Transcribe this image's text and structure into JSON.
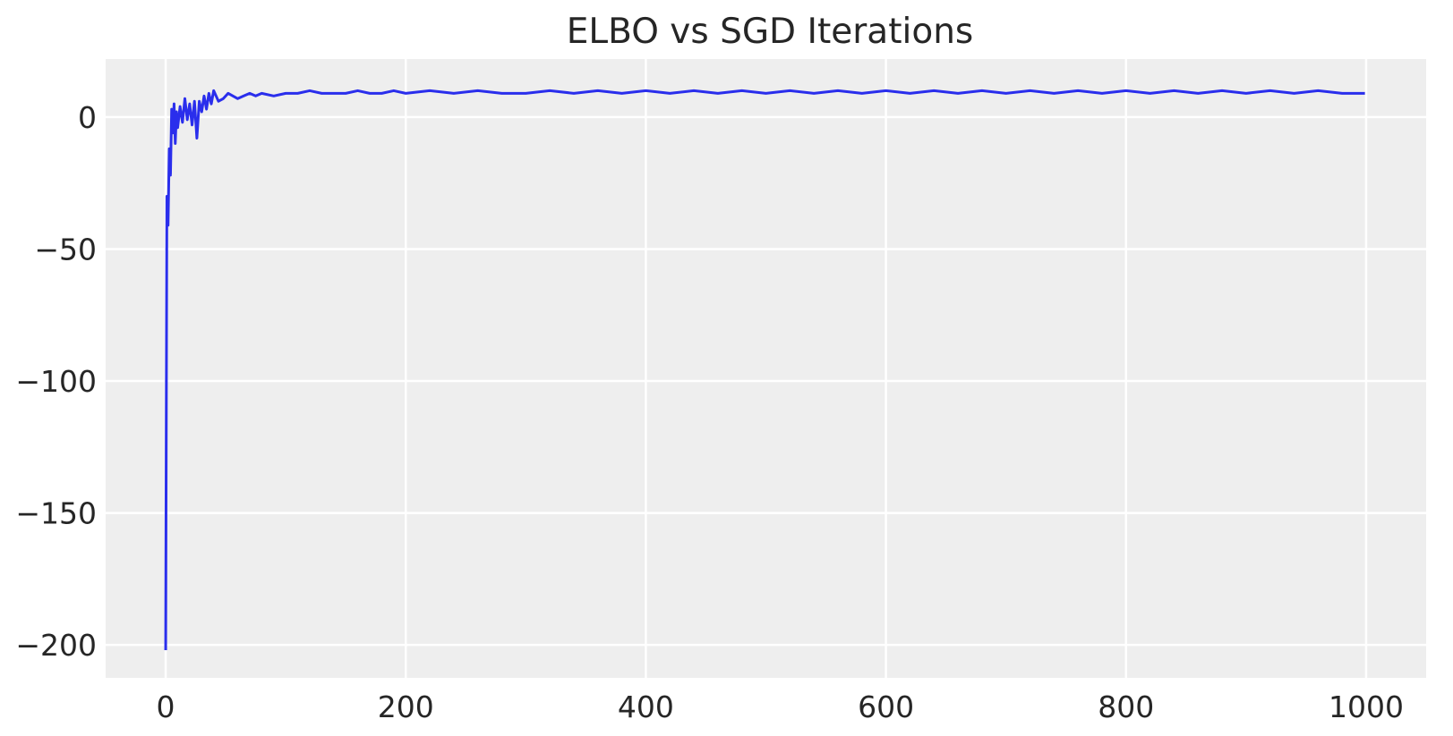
{
  "chart_data": {
    "type": "line",
    "title": "ELBO vs SGD Iterations",
    "xlabel": "",
    "ylabel": "",
    "xlim": [
      -50,
      1050
    ],
    "ylim": [
      -212.5,
      22
    ],
    "x_ticks": [
      0,
      200,
      400,
      600,
      800,
      1000
    ],
    "x_tick_labels": [
      "0",
      "200",
      "400",
      "600",
      "800",
      "1000"
    ],
    "y_ticks": [
      0,
      -50,
      -100,
      -150,
      -200
    ],
    "y_tick_labels": [
      "0",
      "−50",
      "−100",
      "−150",
      "−200"
    ],
    "grid": true,
    "legend": "none",
    "background_color": "#eeeeee",
    "grid_color": "#ffffff",
    "series": [
      {
        "color": "#2a2eec",
        "x": [
          0,
          1,
          2,
          3,
          4,
          5,
          6,
          7,
          8,
          9,
          10,
          12,
          14,
          16,
          18,
          20,
          22,
          24,
          26,
          28,
          30,
          32,
          34,
          36,
          38,
          40,
          44,
          48,
          52,
          56,
          60,
          65,
          70,
          75,
          80,
          90,
          100,
          110,
          120,
          130,
          140,
          150,
          160,
          170,
          180,
          190,
          200,
          220,
          240,
          260,
          280,
          300,
          320,
          340,
          360,
          380,
          400,
          420,
          440,
          460,
          480,
          500,
          520,
          540,
          560,
          580,
          600,
          620,
          640,
          660,
          680,
          700,
          720,
          740,
          760,
          780,
          800,
          820,
          840,
          860,
          880,
          900,
          920,
          940,
          960,
          980,
          999
        ],
        "values": [
          -202,
          -30,
          -41,
          -12,
          -22,
          3,
          -6,
          5,
          -10,
          2,
          -4,
          4,
          -2,
          7,
          -1,
          5,
          -3,
          6,
          -8,
          6,
          2,
          8,
          3,
          9,
          5,
          10,
          6,
          7,
          9,
          8,
          7,
          8,
          9,
          8,
          9,
          8,
          9,
          9,
          10,
          9,
          9,
          9,
          10,
          9,
          9,
          10,
          9,
          10,
          9,
          10,
          9,
          9,
          10,
          9,
          10,
          9,
          10,
          9,
          10,
          9,
          10,
          9,
          10,
          9,
          10,
          9,
          10,
          9,
          10,
          9,
          10,
          9,
          10,
          9,
          10,
          9,
          10,
          9,
          10,
          9,
          10,
          9,
          10,
          9,
          10,
          9,
          9
        ]
      }
    ]
  }
}
